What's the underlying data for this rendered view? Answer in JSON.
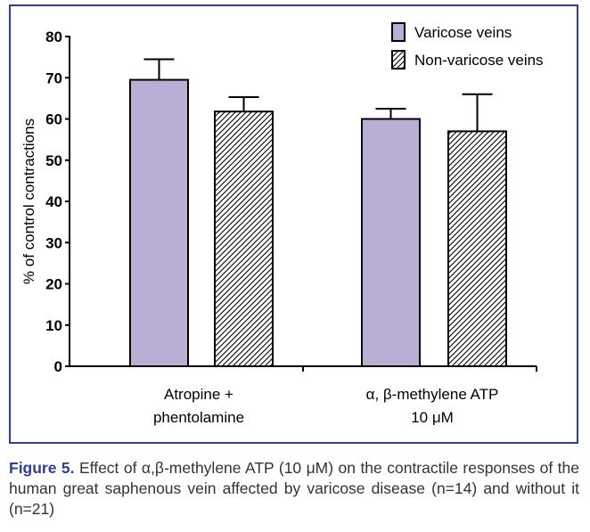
{
  "chart_data": {
    "type": "bar",
    "ylabel": "% of control contractions",
    "ylim": [
      0,
      80
    ],
    "yticks": [
      0,
      10,
      20,
      30,
      40,
      50,
      60,
      70,
      80
    ],
    "groups": [
      [
        "Atropine +",
        "phentolamine"
      ],
      [
        "α, β-methylene ATP",
        "10 μM"
      ]
    ],
    "series": [
      {
        "name": "Varicose veins",
        "values": [
          69.5,
          60
        ],
        "errors": [
          5,
          2.5
        ],
        "fill": "#b9aed4",
        "pattern": "solid"
      },
      {
        "name": "Non-varicose veins",
        "values": [
          61.8,
          57
        ],
        "errors": [
          3.5,
          9
        ],
        "fill": "#ffffff",
        "pattern": "hatched"
      }
    ],
    "legend_position": "top-right"
  },
  "caption": {
    "label": "Figure 5.",
    "text": "Effect of α,β-methylene ATP (10 μM) on the contractile responses of the human great saphenous vein affected by varicose disease (n=14) and without it (n=21)"
  },
  "colors": {
    "frame": "#2f3f93",
    "varicose_fill": "#b9aed4",
    "caption_text": "#333333"
  }
}
